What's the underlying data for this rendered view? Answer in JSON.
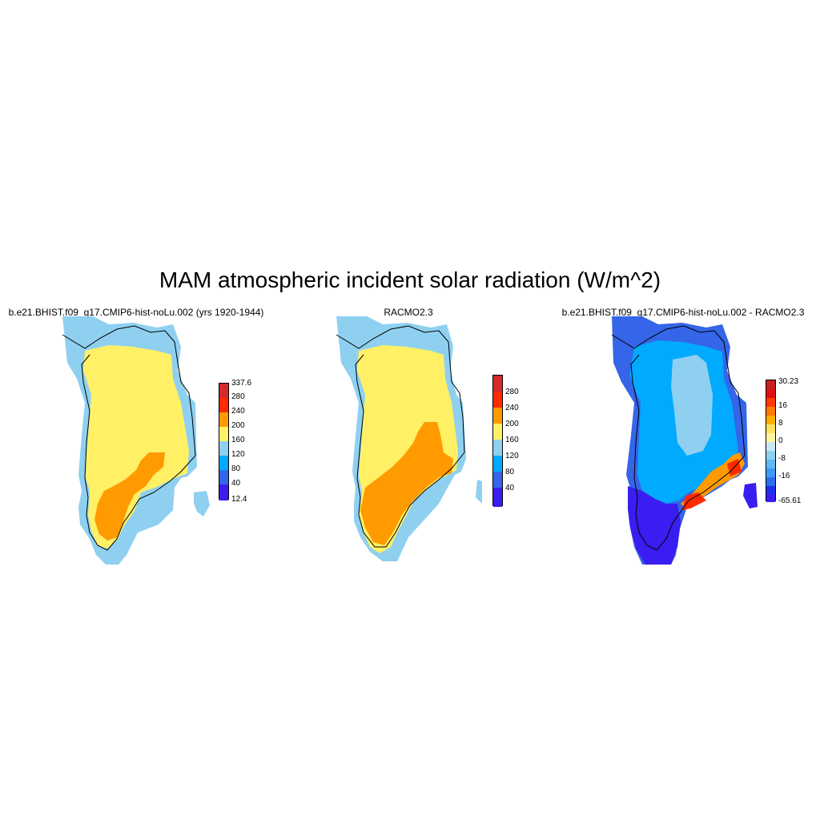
{
  "title": "MAM atmospheric incident solar radiation (W/m^2)",
  "panels": [
    {
      "title": "b.e21.BHIST.f09_g17.CMIP6-hist-noLu.002 (yrs 1920-1944)",
      "colorbar": {
        "colors": [
          "#3a1df0",
          "#3565e8",
          "#00aaff",
          "#8fd0f0",
          "#fff066",
          "#ff9a00",
          "#ff2a00",
          "#d42a2a"
        ],
        "labels": [
          "337.6",
          "280",
          "240",
          "200",
          "160",
          "120",
          "80",
          "40",
          "12.4"
        ]
      }
    },
    {
      "title": "RACMO2.3",
      "colorbar": {
        "colors": [
          "#3a1df0",
          "#3565e8",
          "#00aaff",
          "#8fd0f0",
          "#fff066",
          "#ff9a00",
          "#ff2a00",
          "#d42a2a"
        ],
        "labels": [
          "280",
          "240",
          "200",
          "160",
          "120",
          "80",
          "40"
        ]
      }
    },
    {
      "title": "b.e21.BHIST.f09_g17.CMIP6-hist-noLu.002 - RACMO2.3",
      "colorbar": {
        "colors": [
          "#3a1df0",
          "#2030e8",
          "#2a6ff0",
          "#3d9af5",
          "#62b8f5",
          "#8fd0f0",
          "#c8e8f5",
          "#fff6a0",
          "#ffe060",
          "#ffb000",
          "#ff7a00",
          "#ff3a00",
          "#e01010",
          "#c82020"
        ],
        "labels": [
          "30.23",
          "16",
          "8",
          "0",
          "-8",
          "-16",
          "-65.61"
        ]
      }
    }
  ]
}
